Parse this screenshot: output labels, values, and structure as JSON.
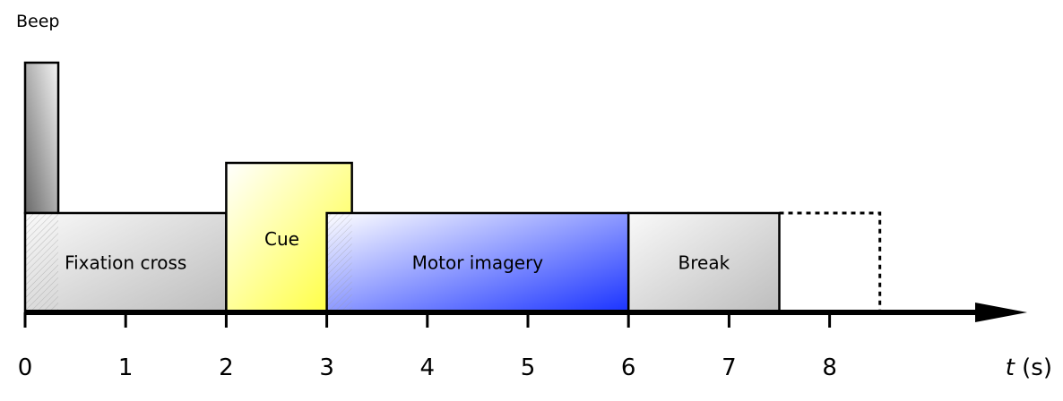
{
  "beep": {
    "label": "Beep",
    "start": 0,
    "end": 0.33
  },
  "phases": [
    {
      "label": "Fixation cross",
      "start": 0,
      "end": 2,
      "level": "base",
      "color_light": "#f9f9f9",
      "color_dark": "#bdbdbd",
      "hatch_to": 0.33
    },
    {
      "label": "Cue",
      "start": 2,
      "end": 3.25,
      "level": "raised",
      "color_light": "#ffffff",
      "color_dark": "#ffff33"
    },
    {
      "label": "Motor imagery",
      "start": 3,
      "end": 6,
      "level": "base",
      "color_light": "#ffffff",
      "color_dark": "#1a33ff",
      "hatch_to": 3.25
    },
    {
      "label": "Break",
      "start": 6,
      "end": 7.5,
      "level": "base",
      "color_light": "#f9f9f9",
      "color_dark": "#bdbdbd"
    }
  ],
  "dashed_extension": {
    "start": 7.5,
    "end": 8.5
  },
  "axis": {
    "ticks": [
      "0",
      "1",
      "2",
      "3",
      "4",
      "5",
      "6",
      "7",
      "8"
    ],
    "label_var": "t",
    "label_unit": " (s)"
  },
  "colors": {
    "outline": "#000000",
    "beep_light": "#f4f4f4",
    "beep_dark": "#6a6a6a"
  }
}
